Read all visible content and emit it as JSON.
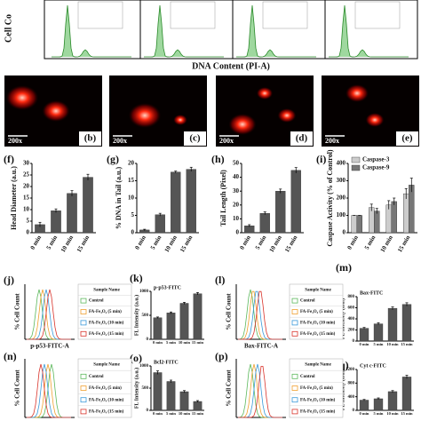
{
  "cell_cycle": {
    "y_label": "Cell Co",
    "x_label": "DNA Content (PI-A)"
  },
  "images": [
    {
      "label": "(b)",
      "scale": "200x"
    },
    {
      "label": "(c)",
      "scale": "200x"
    },
    {
      "label": "(d)",
      "scale": "200x"
    },
    {
      "label": "(e)",
      "scale": "200x"
    }
  ],
  "flow_legend": {
    "title": "Sample Name",
    "items": [
      {
        "name": "Control",
        "color": "#5cb85c"
      },
      {
        "name": "FA-Fe₃O₄ (5 min)",
        "color": "#f0a030"
      },
      {
        "name": "FA-Fe₃O₄ (10 min)",
        "color": "#3a9ad9"
      },
      {
        "name": "FA-Fe₃O₄ (15 min)",
        "color": "#d9342b"
      }
    ]
  },
  "flow_panels": [
    {
      "label": "(j)",
      "y_label": "% Cell Count",
      "x_label": "p-p53-FITC-A"
    },
    {
      "label": "(l)",
      "y_label": "% Cell Count",
      "x_label": "Bax-FITC-A"
    },
    {
      "label": "(n)",
      "y_label": "% Cell Count"
    },
    {
      "label": "(p)",
      "y_label": "% Cell Count"
    }
  ],
  "chart_data": [
    {
      "label": "(f)",
      "type": "bar",
      "y_label": "Head Diameter (a.u.)",
      "categories": [
        "0 min",
        "5 min",
        "10 min",
        "15 min"
      ],
      "values": [
        3.5,
        9.5,
        17,
        24
      ],
      "errors": [
        1,
        0.8,
        1.2,
        1.3
      ],
      "color": "#555555",
      "ylim": [
        0,
        30
      ],
      "yticks": [
        0,
        5,
        10,
        15,
        20,
        25,
        30
      ]
    },
    {
      "label": "(g)",
      "type": "bar",
      "y_label": "% DNA in Tail (a.u.)",
      "categories": [
        "0 min",
        "5 min",
        "10 min",
        "15 min"
      ],
      "values": [
        0.8,
        5.2,
        17.5,
        18.3
      ],
      "errors": [
        0.2,
        0.4,
        0.3,
        0.6
      ],
      "color": "#555555",
      "ylim": [
        0,
        20
      ],
      "yticks": [
        0,
        5,
        10,
        15,
        20
      ]
    },
    {
      "label": "(h)",
      "type": "bar",
      "y_label": "Tail Length (Pixel)",
      "categories": [
        "0 min",
        "5 min",
        "10 min",
        "15 min"
      ],
      "values": [
        5,
        14,
        30,
        45
      ],
      "errors": [
        0.8,
        1,
        1.5,
        2
      ],
      "color": "#555555",
      "ylim": [
        0,
        50
      ],
      "yticks": [
        0,
        10,
        20,
        30,
        40,
        50
      ]
    },
    {
      "label": "(i)",
      "type": "grouped_bar",
      "y_label": "Caspase Activity (% of Control)",
      "categories": [
        "0 min",
        "5 min",
        "10 min",
        "15 min"
      ],
      "series": [
        {
          "name": "Caspase-3",
          "color": "#cccccc",
          "values": [
            100,
            145,
            160,
            225
          ],
          "errors": [
            0,
            20,
            25,
            30
          ]
        },
        {
          "name": "Caspase-9",
          "color": "#777777",
          "values": [
            100,
            125,
            180,
            275
          ],
          "errors": [
            0,
            15,
            20,
            40
          ]
        }
      ],
      "ylim": [
        0,
        400
      ],
      "yticks": [
        0,
        100,
        200,
        300,
        400
      ]
    },
    {
      "label": "(k)",
      "type": "bar",
      "title": "p-p53-FITC",
      "y_label": "FL Intensity (a.u.)",
      "categories": [
        "0 min",
        "5 min",
        "10 min",
        "15 min"
      ],
      "values": [
        450,
        550,
        750,
        950
      ],
      "errors": [
        15,
        20,
        20,
        25
      ],
      "color": "#555555",
      "ylim": [
        0,
        1000
      ],
      "yticks": [
        0,
        500,
        1000
      ]
    },
    {
      "label": "(m)",
      "type": "bar",
      "title": "Bax-FITC",
      "y_label": "FL Intensity (a.u.)",
      "categories": [
        "0 min",
        "5 min",
        "10 min",
        "15 min"
      ],
      "values": [
        230,
        310,
        590,
        660
      ],
      "errors": [
        15,
        20,
        25,
        30
      ],
      "color": "#555555",
      "ylim": [
        0,
        800
      ],
      "yticks": [
        0,
        200,
        400,
        600,
        800
      ]
    },
    {
      "label": "(o)",
      "type": "bar",
      "title": "Bcl2-FITC",
      "y_label": "FL Intensity (a.u.)",
      "categories": [
        "0 min",
        "5 min",
        "10 min",
        "15 min"
      ],
      "values": [
        850,
        650,
        420,
        200
      ],
      "errors": [
        40,
        30,
        25,
        20
      ],
      "color": "#555555",
      "ylim": [
        0,
        1000
      ],
      "yticks": [
        0,
        500,
        1000
      ]
    },
    {
      "label": "(q)",
      "type": "bar",
      "title": "Cyt c-FITC",
      "y_label": "FL Intensity (a.u.)",
      "categories": [
        "0 min",
        "5 min",
        "10 min",
        "15 min"
      ],
      "values": [
        300,
        340,
        550,
        980
      ],
      "errors": [
        20,
        25,
        30,
        50
      ],
      "color": "#555555",
      "ylim": [
        0,
        1200
      ],
      "yticks": [
        0,
        400,
        800,
        1200
      ]
    }
  ]
}
